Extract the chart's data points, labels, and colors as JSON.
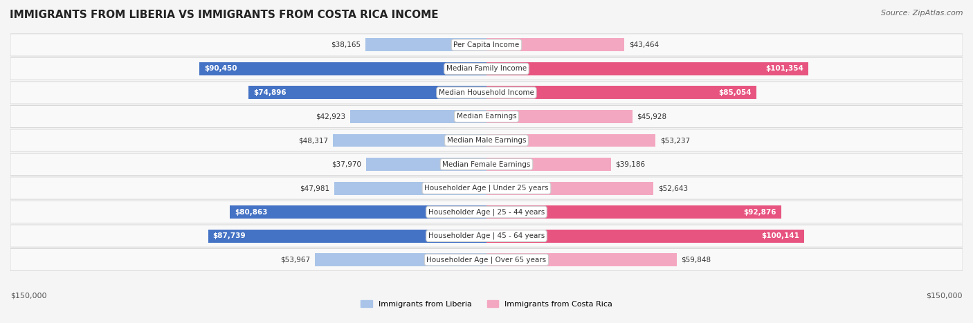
{
  "title": "IMMIGRANTS FROM LIBERIA VS IMMIGRANTS FROM COSTA RICA INCOME",
  "source": "Source: ZipAtlas.com",
  "categories": [
    "Per Capita Income",
    "Median Family Income",
    "Median Household Income",
    "Median Earnings",
    "Median Male Earnings",
    "Median Female Earnings",
    "Householder Age | Under 25 years",
    "Householder Age | 25 - 44 years",
    "Householder Age | 45 - 64 years",
    "Householder Age | Over 65 years"
  ],
  "liberia_values": [
    38165,
    90450,
    74896,
    42923,
    48317,
    37970,
    47981,
    80863,
    87739,
    53967
  ],
  "costa_rica_values": [
    43464,
    101354,
    85054,
    45928,
    53237,
    39186,
    52643,
    92876,
    100141,
    59848
  ],
  "liberia_labels": [
    "$38,165",
    "$90,450",
    "$74,896",
    "$42,923",
    "$48,317",
    "$37,970",
    "$47,981",
    "$80,863",
    "$87,739",
    "$53,967"
  ],
  "costa_rica_labels": [
    "$43,464",
    "$101,354",
    "$85,054",
    "$45,928",
    "$53,237",
    "$39,186",
    "$52,643",
    "$92,876",
    "$100,141",
    "$59,848"
  ],
  "max_value": 150000,
  "liberia_color_strong": "#4472c4",
  "liberia_color_light": "#a9c4e8",
  "costa_rica_color_strong": "#e75480",
  "costa_rica_color_light": "#f4a7c0",
  "bg_color": "#f5f5f5",
  "row_bg": "#ffffff",
  "label_color_dark": "#333333",
  "label_color_white": "#ffffff",
  "threshold_strong": 70000
}
